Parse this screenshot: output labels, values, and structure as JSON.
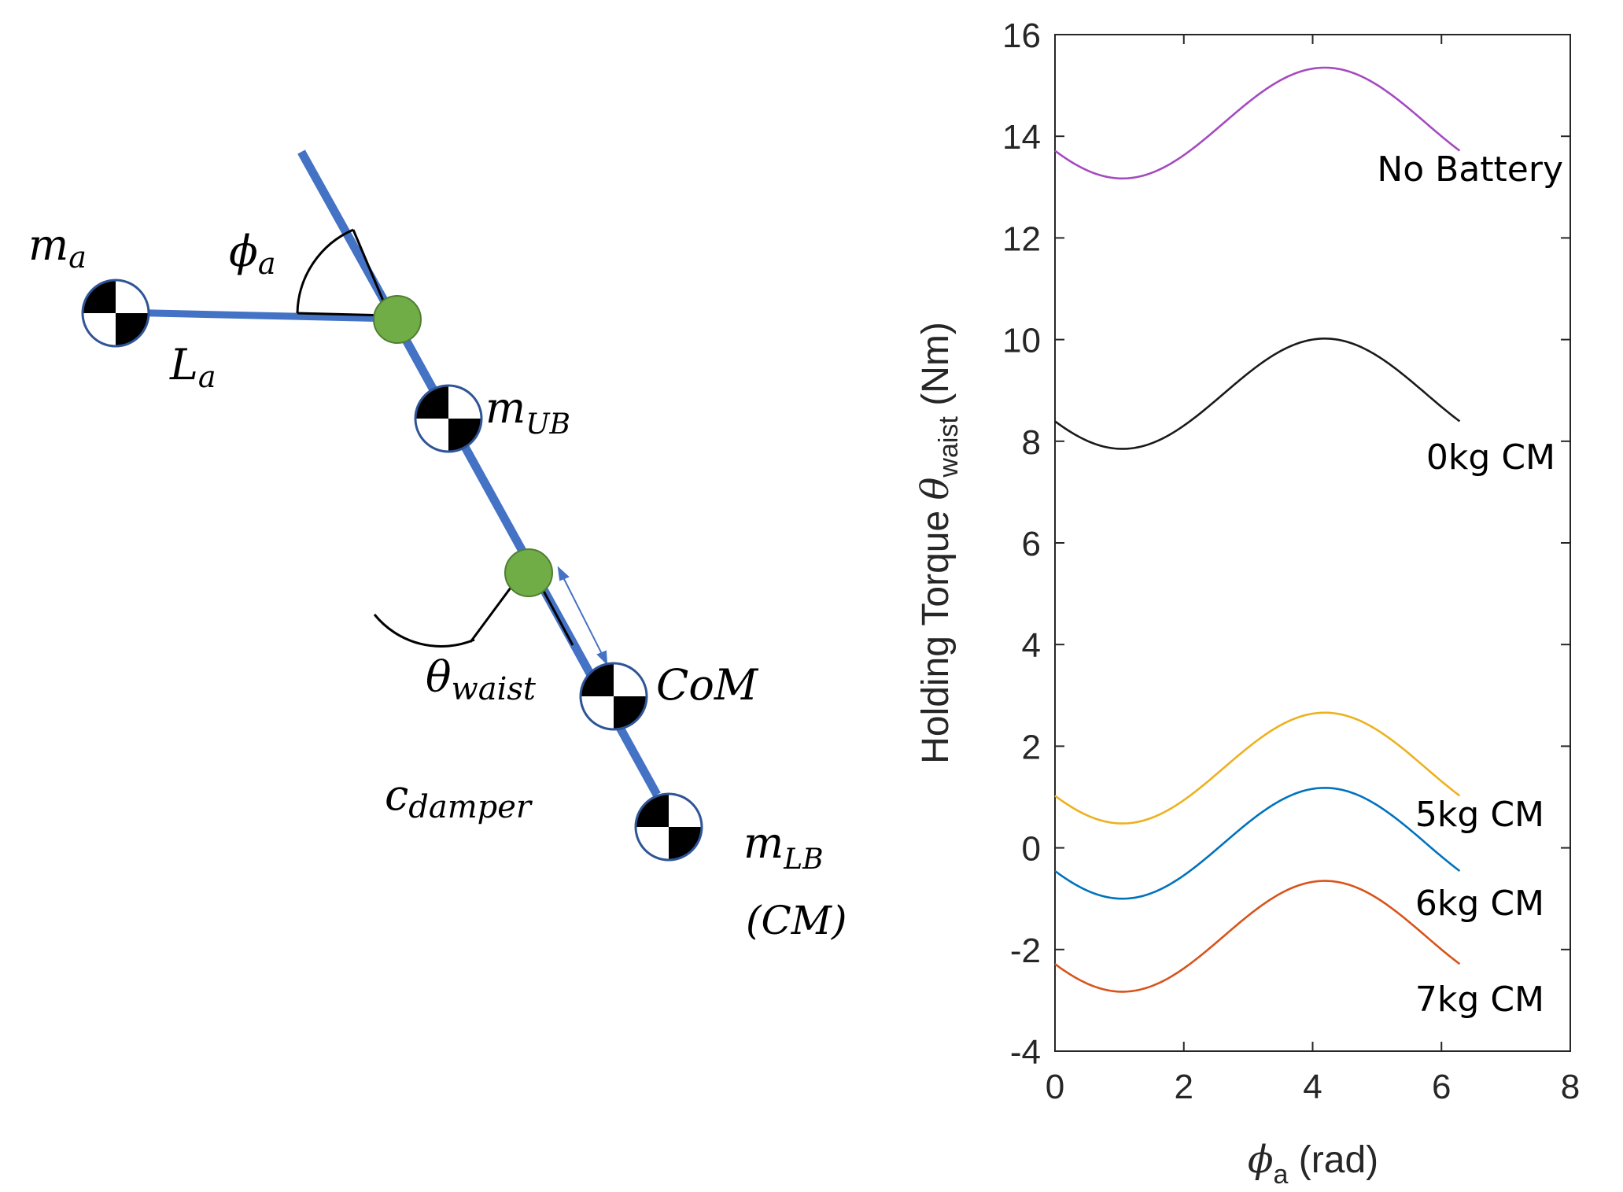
{
  "diagram": {
    "labels": {
      "m_a": {
        "base": "m",
        "sub": "a"
      },
      "phi_a": {
        "base": "ϕ",
        "sub": "a"
      },
      "L_a": {
        "base": "L",
        "sub": "a"
      },
      "m_UB": {
        "base": "m",
        "sub": "UB"
      },
      "theta_waist": {
        "base": "θ",
        "sub": "waist"
      },
      "com": "CoM",
      "c_damper": {
        "base": "c",
        "sub": "damper"
      },
      "m_LB": {
        "base": "m",
        "sub": "LB"
      },
      "cm_note": "(CM)"
    },
    "colors": {
      "link": "#4472C4",
      "joint": "#70AD47",
      "arrow": "#4472C4"
    }
  },
  "chart_data": {
    "type": "line",
    "title": "",
    "xlabel": {
      "base": "ϕ",
      "sub": "a",
      "rest": " (rad)"
    },
    "ylabel": {
      "prefix": "Holding Torque ",
      "base": "θ",
      "sub": "waist",
      "suffix": " (Nm)"
    },
    "xlim": [
      0,
      8
    ],
    "ylim": [
      -4,
      16
    ],
    "xticks": [
      "0",
      "2",
      "4",
      "6",
      "8"
    ],
    "yticks": [
      "-4",
      "-2",
      "0",
      "2",
      "4",
      "6",
      "8",
      "10",
      "12",
      "14",
      "16"
    ],
    "grid": false,
    "x_range": [
      0,
      6.283
    ],
    "series": [
      {
        "name": "No Battery",
        "color": "#A54AC0",
        "x_min": 1.05,
        "y_min": 13.17,
        "x_max": 4.19,
        "y_max": 15.35,
        "y_start": 13.67,
        "y_end": 13.67
      },
      {
        "name": "0kg CM",
        "color": "#1a1a1a",
        "x_min": 1.05,
        "y_min": 7.85,
        "x_max": 4.19,
        "y_max": 10.02,
        "y_start": 8.35,
        "y_end": 8.35
      },
      {
        "name": "5kg CM",
        "color": "#EDB120",
        "x_min": 1.05,
        "y_min": 0.48,
        "x_max": 4.19,
        "y_max": 2.66,
        "y_start": 1.0,
        "y_end": 1.0
      },
      {
        "name": "6kg CM",
        "color": "#0072BD",
        "x_min": 1.05,
        "y_min": -1.0,
        "x_max": 4.19,
        "y_max": 1.18,
        "y_start": -0.48,
        "y_end": -0.48
      },
      {
        "name": "7kg CM",
        "color": "#D95319",
        "x_min": 1.05,
        "y_min": -2.83,
        "x_max": 4.19,
        "y_max": -0.65,
        "y_start": -2.3,
        "y_end": -2.3
      }
    ]
  }
}
